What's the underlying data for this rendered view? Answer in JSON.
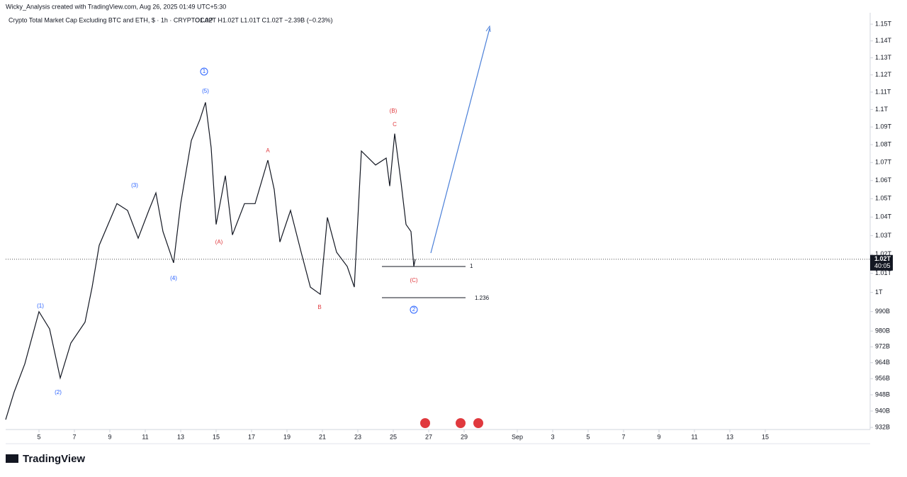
{
  "header": "Wicky_Analysis created with TradingView.com, Aug 26, 2025 01:49 UTC+5:30",
  "footer_logo": "TradingView",
  "chart_data": {
    "type": "line",
    "title": "Crypto Total Market Cap Excluding BTC and ETH, $ · 1h · CRYPTOCAP",
    "subtitle": "O1.02T  H1.02T  L1.01T  C1.02T  −2.39B (−0.23%)",
    "log_scale": true,
    "x": [
      3.12,
      3.6,
      4.2,
      5,
      5.6,
      6.2,
      6.8,
      7.6,
      8,
      8.4,
      9.4,
      10,
      10.6,
      11.2,
      11.6,
      12,
      12.6,
      13,
      13.6,
      14.08,
      14.4,
      14.72,
      15,
      15.52,
      15.92,
      16.6,
      17.2,
      17.92,
      18.28,
      18.6,
      19.2,
      19.8,
      20.32,
      20.88,
      21.28,
      21.8,
      22.4,
      22.8,
      23.2,
      24,
      24.6,
      24.8,
      25.08,
      25.44,
      25.72,
      26,
      26.16,
      26.24
    ],
    "series": [
      {
        "name": "CRYPTOCAP",
        "color": "#131722",
        "values": [
          935800000000,
          949400000000,
          963400000000,
          990000000000,
          981100000000,
          956300000000,
          973900000000,
          984600000000,
          1002700000000,
          1024800000000,
          1047300000000,
          1043600000000,
          1028600000000,
          1043600000000,
          1053200000000,
          1032200000000,
          1015500000000,
          1047300000000,
          1082300000000,
          1094100000000,
          1104100000000,
          1078300000000,
          1036000000000,
          1062700000000,
          1030400000000,
          1047300000000,
          1047300000000,
          1071300000000,
          1055000000000,
          1026600000000,
          1043600000000,
          1021100000000,
          1002700000000,
          999000000000,
          1039800000000,
          1021100000000,
          1013600000000,
          1002700000000,
          1076400000000,
          1068600000000,
          1072500000000,
          1056900000000,
          1086200000000,
          1058900000000,
          1036000000000,
          1032200000000,
          1013600000000,
          1017400000000
        ]
      }
    ],
    "xlim": [
      3.12,
      51.92
    ],
    "xticks": [
      5,
      7,
      9,
      11,
      13,
      15,
      17,
      19,
      21,
      23,
      25,
      27,
      29,
      {
        "value": 32,
        "label": "Sep"
      },
      {
        "value": 34,
        "label": "3"
      },
      {
        "value": 36,
        "label": "5"
      },
      {
        "value": 38,
        "label": "7"
      },
      {
        "value": 40,
        "label": "9"
      },
      {
        "value": 42,
        "label": "11"
      },
      {
        "value": 44,
        "label": "13"
      },
      {
        "value": 46,
        "label": "15"
      }
    ],
    "ylim": [
      931000000000,
      1156000000000
    ],
    "yticks": [
      {
        "value": 1150000000000,
        "label": "1.15T"
      },
      {
        "value": 1140000000000,
        "label": "1.14T"
      },
      {
        "value": 1130000000000,
        "label": "1.13T"
      },
      {
        "value": 1120000000000,
        "label": "1.12T"
      },
      {
        "value": 1110000000000,
        "label": "1.11T"
      },
      {
        "value": 1100000000000,
        "label": "1.1T"
      },
      {
        "value": 1090000000000,
        "label": "1.09T"
      },
      {
        "value": 1080000000000,
        "label": "1.08T"
      },
      {
        "value": 1070000000000,
        "label": "1.07T"
      },
      {
        "value": 1060000000000,
        "label": "1.06T"
      },
      {
        "value": 1050000000000,
        "label": "1.05T"
      },
      {
        "value": 1040000000000,
        "label": "1.04T"
      },
      {
        "value": 1030000000000,
        "label": "1.03T"
      },
      {
        "value": 1020000000000,
        "label": "1.02T"
      },
      {
        "value": 1010000000000,
        "label": "1.01T"
      },
      {
        "value": 1000000000000,
        "label": "1T"
      },
      {
        "value": 990000000000,
        "label": "990B"
      },
      {
        "value": 980000000000,
        "label": "980B"
      },
      {
        "value": 972000000000,
        "label": "972B"
      },
      {
        "value": 964000000000,
        "label": "964B"
      },
      {
        "value": 956000000000,
        "label": "956B"
      },
      {
        "value": 948000000000,
        "label": "948B"
      },
      {
        "value": 940000000000,
        "label": "940B"
      },
      {
        "value": 932000000000,
        "label": "932B"
      }
    ],
    "last_price": {
      "value": 1017400000000,
      "label": "1.02T",
      "countdown": "40:05"
    },
    "annotations": [
      "1",
      "(5)",
      "(3)",
      "(1)",
      "(2)",
      "(4)",
      "(A)",
      "A",
      "B",
      "(B)",
      "C",
      "(C)",
      "2",
      "1",
      "1.236"
    ]
  }
}
